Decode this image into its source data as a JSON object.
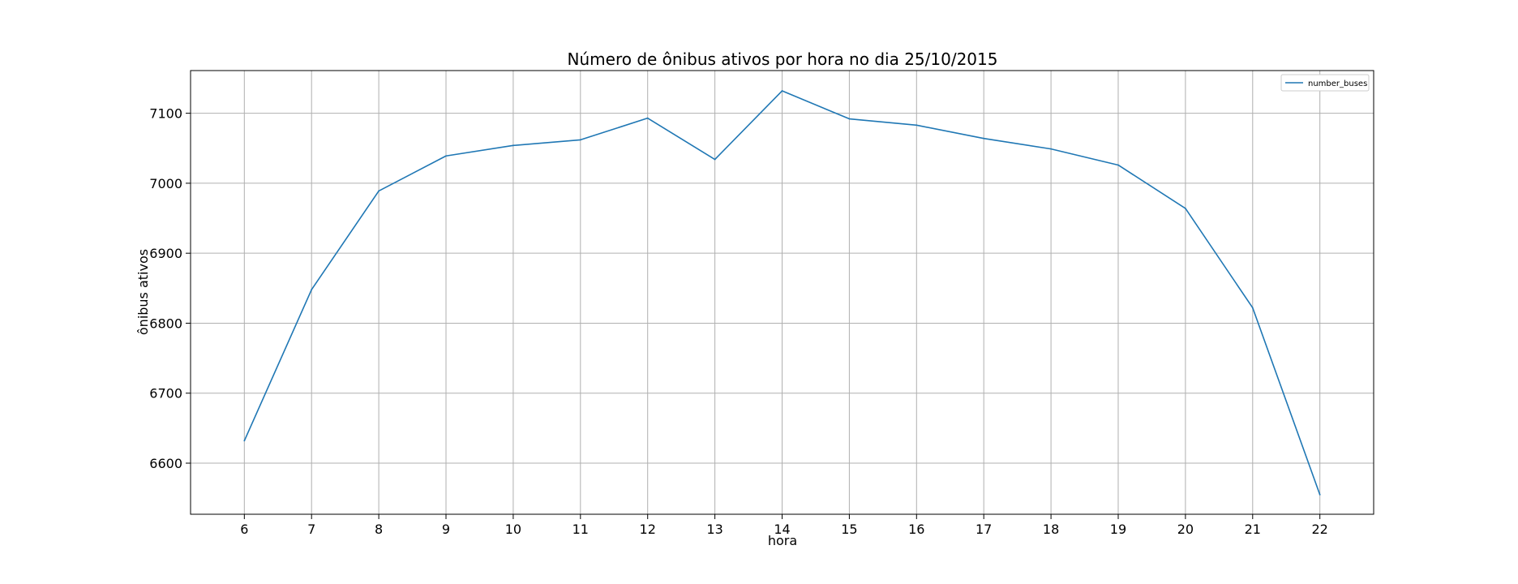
{
  "chart_data": {
    "type": "line",
    "title": "Número de ônibus ativos por hora no dia 25/10/2015",
    "xlabel": "hora",
    "ylabel": "ônibus ativos",
    "x": [
      6,
      7,
      8,
      9,
      10,
      11,
      12,
      13,
      14,
      15,
      16,
      17,
      18,
      19,
      20,
      21,
      22
    ],
    "x_ticks": [
      "6",
      "7",
      "8",
      "9",
      "10",
      "11",
      "12",
      "13",
      "14",
      "15",
      "16",
      "17",
      "18",
      "19",
      "20",
      "21",
      "22"
    ],
    "y_ticks": [
      "6600",
      "6700",
      "6800",
      "6900",
      "7000",
      "7100"
    ],
    "xlim": [
      5.2,
      22.8
    ],
    "ylim": [
      6527,
      7161
    ],
    "grid": true,
    "legend_position": "top-right",
    "series": [
      {
        "name": "number_buses",
        "color": "#1f77b4",
        "values": [
          6632,
          6848,
          6989,
          7039,
          7054,
          7062,
          7093,
          7034,
          7132,
          7092,
          7083,
          7064,
          7049,
          7026,
          6964,
          6822,
          6555
        ]
      }
    ]
  }
}
